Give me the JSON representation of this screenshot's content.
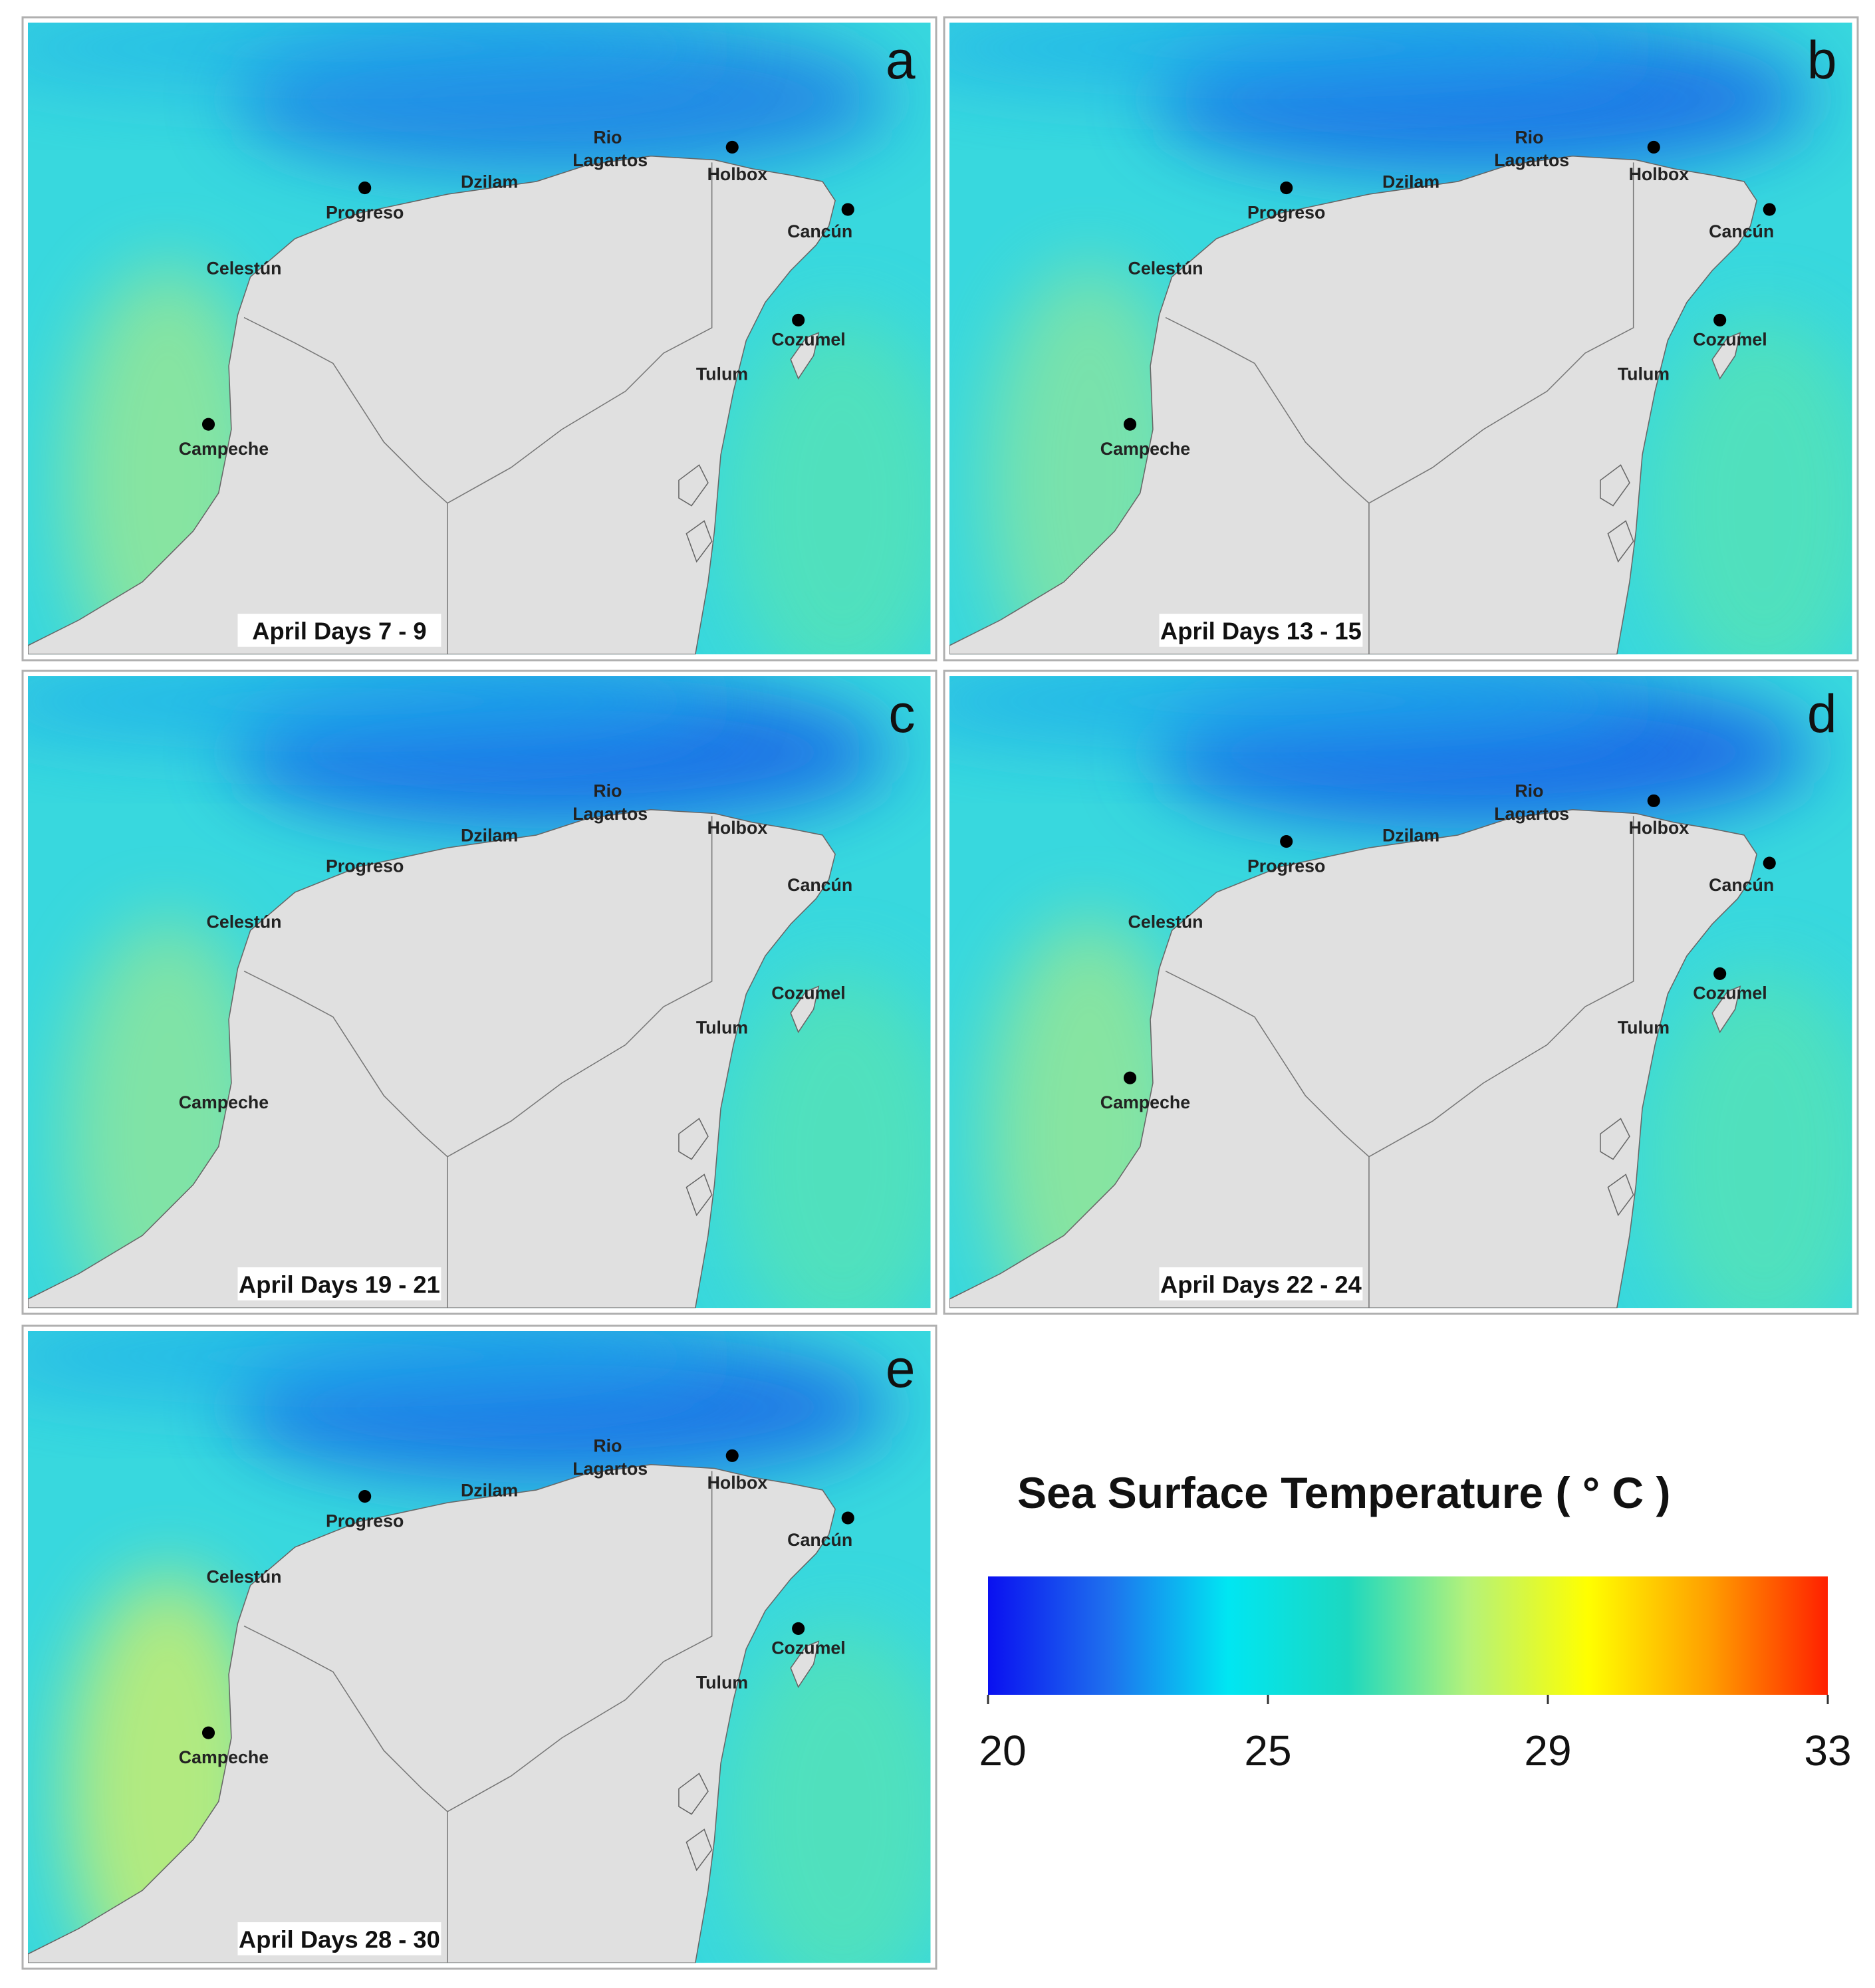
{
  "panels": [
    {
      "letter": "a",
      "caption": "April Days 7 - 9"
    },
    {
      "letter": "b",
      "caption": "April Days 13 - 15"
    },
    {
      "letter": "c",
      "caption": "April Days 19 - 21"
    },
    {
      "letter": "d",
      "caption": "April Days 22 - 24"
    },
    {
      "letter": "e",
      "caption": "April Days 28 - 30"
    }
  ],
  "places": [
    "Rio",
    "Lagartos",
    "Holbox",
    "Progreso",
    "Dzilam",
    "Cancún",
    "Celestún",
    "Cozumel",
    "Tulum",
    "Campeche"
  ],
  "colorbar": {
    "title": "Sea Surface Temperature ( ° C )",
    "ticks": [
      20,
      25,
      29,
      33
    ],
    "colors": [
      "#0a10f0",
      "#1e70ee",
      "#00e6f2",
      "#1cd8c0",
      "#b4f27a",
      "#ffff00",
      "#ffa000",
      "#ff2000"
    ]
  }
}
